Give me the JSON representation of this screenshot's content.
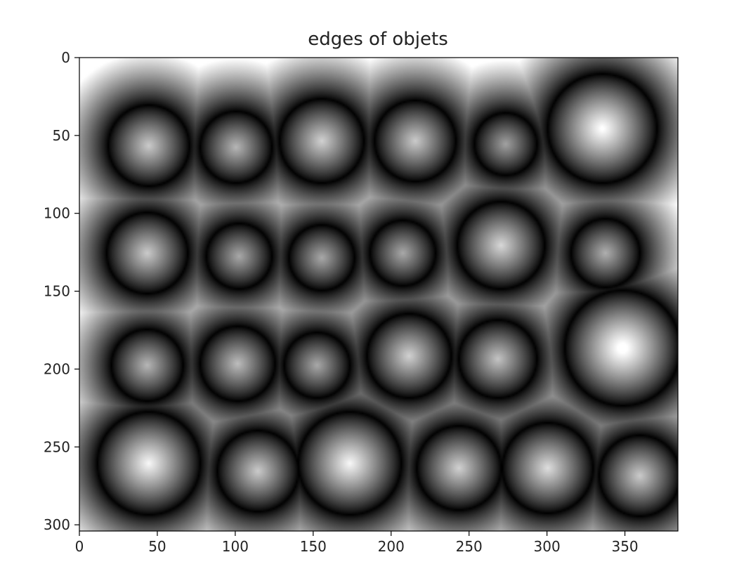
{
  "chart_data": {
    "type": "heatmap",
    "title": "edges of objets",
    "xlabel": "",
    "ylabel": "",
    "colormap": "gray",
    "image_width": 384,
    "image_height": 304,
    "xlim": [
      0,
      384
    ],
    "ylim": [
      304,
      0
    ],
    "x_ticks": [
      0,
      50,
      100,
      150,
      200,
      250,
      300,
      350
    ],
    "y_ticks": [
      0,
      50,
      100,
      150,
      200,
      250,
      300
    ],
    "grid": false,
    "legend": "none",
    "objects": [
      {
        "x": 44,
        "y": 56,
        "r": 26
      },
      {
        "x": 100,
        "y": 57,
        "r": 23
      },
      {
        "x": 155,
        "y": 53,
        "r": 27
      },
      {
        "x": 215,
        "y": 53,
        "r": 26
      },
      {
        "x": 273,
        "y": 55,
        "r": 20
      },
      {
        "x": 335,
        "y": 45,
        "r": 35
      },
      {
        "x": 43,
        "y": 125,
        "r": 26
      },
      {
        "x": 102,
        "y": 127,
        "r": 21
      },
      {
        "x": 155,
        "y": 128,
        "r": 21
      },
      {
        "x": 207,
        "y": 125,
        "r": 21
      },
      {
        "x": 270,
        "y": 120,
        "r": 28
      },
      {
        "x": 337,
        "y": 125,
        "r": 22
      },
      {
        "x": 43,
        "y": 197,
        "r": 23
      },
      {
        "x": 101,
        "y": 196,
        "r": 24
      },
      {
        "x": 152,
        "y": 197,
        "r": 21
      },
      {
        "x": 211,
        "y": 191,
        "r": 27
      },
      {
        "x": 268,
        "y": 193,
        "r": 25
      },
      {
        "x": 348,
        "y": 186,
        "r": 37
      },
      {
        "x": 44,
        "y": 260,
        "r": 33
      },
      {
        "x": 114,
        "y": 265,
        "r": 26
      },
      {
        "x": 173,
        "y": 260,
        "r": 33
      },
      {
        "x": 243,
        "y": 263,
        "r": 27
      },
      {
        "x": 300,
        "y": 263,
        "r": 29
      },
      {
        "x": 359,
        "y": 268,
        "r": 26
      }
    ]
  }
}
